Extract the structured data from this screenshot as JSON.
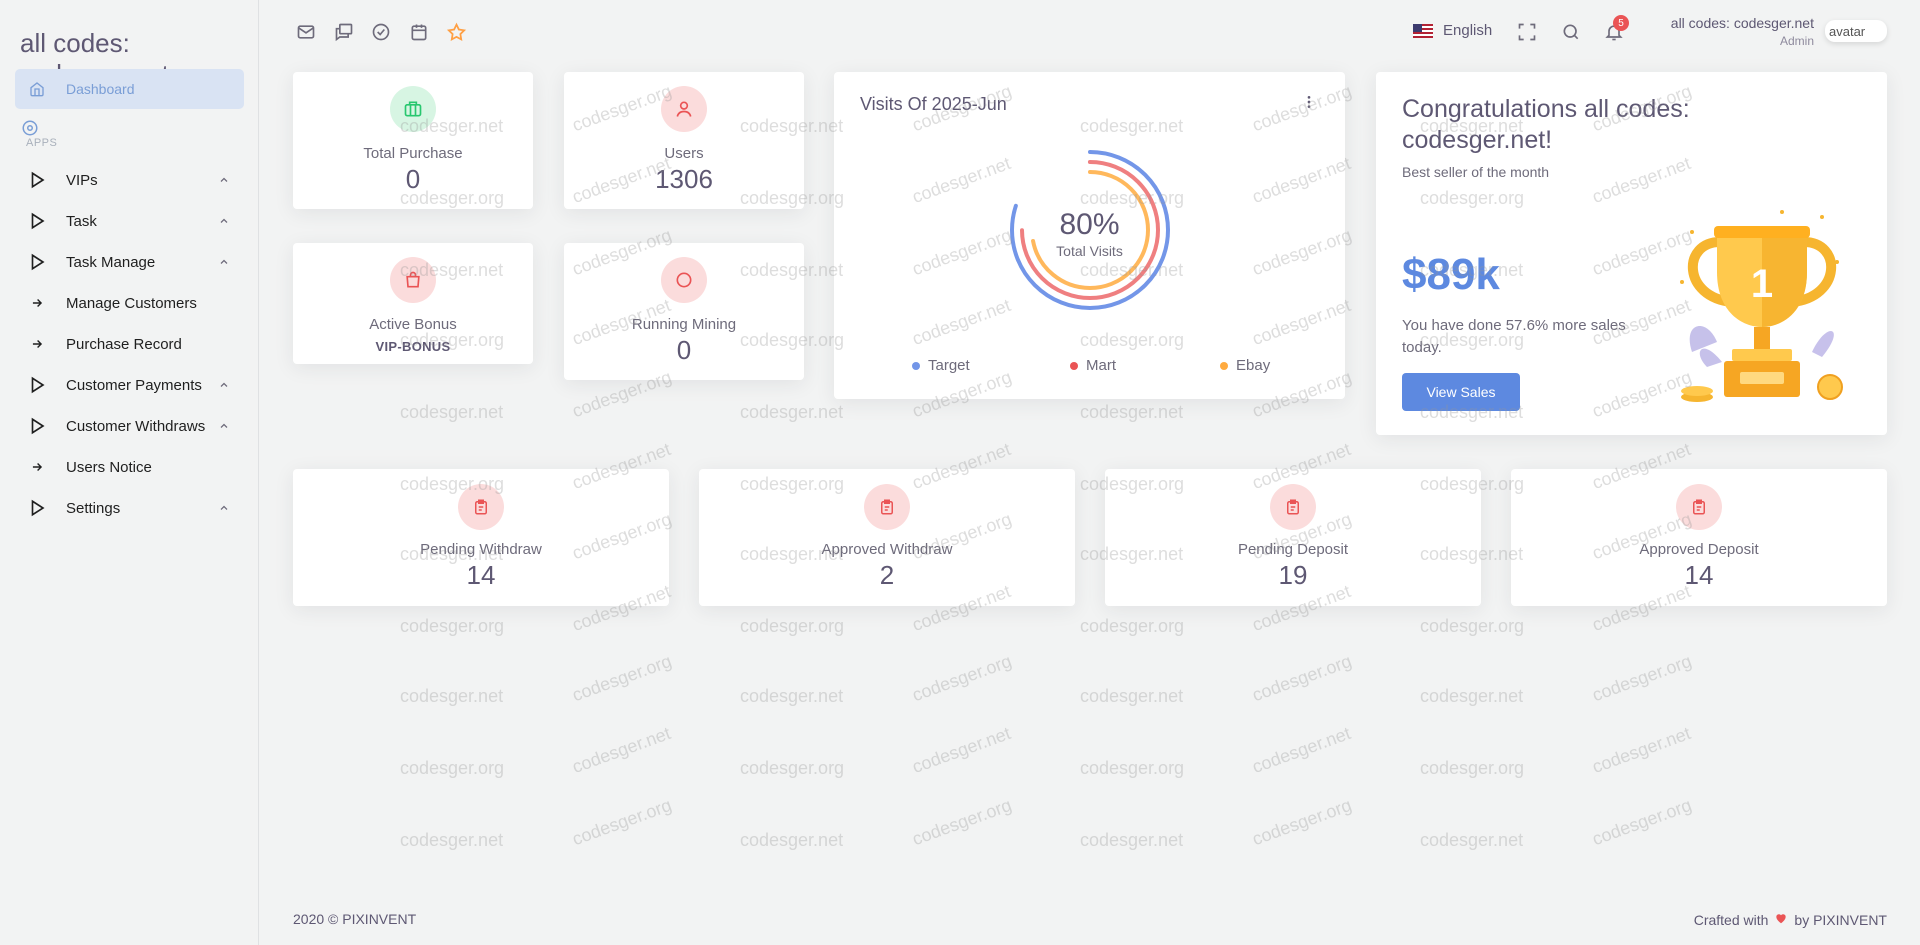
{
  "brand": {
    "title": "all codes: codesger.net"
  },
  "sidebar": {
    "active": {
      "label": "Dashboard",
      "icon": "home-icon"
    },
    "section_label": "APPS",
    "items": [
      {
        "label": "VIPs",
        "icon": "play-icon",
        "expandable": true
      },
      {
        "label": "Task",
        "icon": "play-icon",
        "expandable": true
      },
      {
        "label": "Task Manage",
        "icon": "play-icon",
        "expandable": true
      },
      {
        "label": "Manage Customers",
        "icon": "arrow-right-icon",
        "expandable": false
      },
      {
        "label": "Purchase Record",
        "icon": "arrow-right-icon",
        "expandable": false
      },
      {
        "label": "Customer Payments",
        "icon": "play-icon",
        "expandable": true
      },
      {
        "label": "Customer Withdraws",
        "icon": "play-icon",
        "expandable": true
      },
      {
        "label": "Users Notice",
        "icon": "arrow-right-icon",
        "expandable": false
      },
      {
        "label": "Settings",
        "icon": "play-icon",
        "expandable": true
      }
    ]
  },
  "header": {
    "shortcuts": [
      "mail-icon",
      "chat-icon",
      "check-circle-icon",
      "calendar-icon",
      "star-icon"
    ],
    "language": "English",
    "notification_count": "5",
    "user_name": "all codes: codesger.net",
    "user_role": "Admin",
    "avatar_alt": "avatar"
  },
  "stats": {
    "total_purchase": {
      "label": "Total Purchase",
      "value": "0"
    },
    "users": {
      "label": "Users",
      "value": "1306"
    },
    "active_bonus": {
      "label": "Active Bonus",
      "value": "VIP-BONUS"
    },
    "running_mining": {
      "label": "Running Mining",
      "value": "0"
    }
  },
  "visits": {
    "title": "Visits Of 2025-Jun",
    "percent": "80%",
    "center_label": "Total Visits",
    "legend": [
      {
        "label": "Target",
        "color": "#7396e8"
      },
      {
        "label": "Mart",
        "color": "#ea5455"
      },
      {
        "label": "Ebay",
        "color": "#ffab40"
      }
    ]
  },
  "congrats": {
    "title": "Congratulations all codes: codesger.net!",
    "subtitle": "Best seller of the month",
    "amount": "$89k",
    "description": "You have done 57.6% more sales today.",
    "button": "View Sales"
  },
  "transactions": [
    {
      "label": "Pending Withdraw",
      "value": "14"
    },
    {
      "label": "Approved Withdraw",
      "value": "2"
    },
    {
      "label": "Pending Deposit",
      "value": "19"
    },
    {
      "label": "Approved Deposit",
      "value": "14"
    }
  ],
  "footer": {
    "left": "2020 © PIXINVENT",
    "right_prefix": "Crafted with",
    "right_suffix": "by PIXINVENT"
  },
  "watermark": {
    "a": "codesger.net",
    "b": "codesger.org"
  }
}
